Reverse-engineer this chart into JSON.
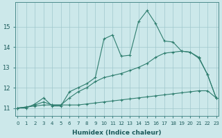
{
  "xlabel": "Humidex (Indice chaleur)",
  "ylabel": "",
  "background_color": "#cce8ea",
  "grid_color": "#a0c8cc",
  "line_color": "#2e7d6e",
  "x_ticks": [
    0,
    1,
    2,
    3,
    4,
    5,
    6,
    7,
    8,
    9,
    10,
    11,
    12,
    13,
    14,
    15,
    16,
    17,
    18,
    19,
    20,
    21,
    22,
    23
  ],
  "y_ticks": [
    11,
    12,
    13,
    14,
    15
  ],
  "xlim": [
    -0.3,
    23.3
  ],
  "ylim": [
    10.6,
    16.2
  ],
  "series1_y": [
    11.0,
    11.0,
    11.2,
    11.5,
    11.1,
    11.1,
    11.8,
    12.0,
    12.2,
    12.5,
    14.4,
    14.6,
    13.55,
    13.6,
    15.25,
    15.8,
    15.15,
    14.3,
    14.25,
    13.8,
    13.75,
    13.45,
    12.65,
    11.5
  ],
  "series2_y": [
    11.0,
    11.05,
    11.1,
    11.15,
    11.15,
    11.15,
    11.15,
    11.15,
    11.2,
    11.25,
    11.3,
    11.35,
    11.4,
    11.45,
    11.5,
    11.55,
    11.6,
    11.65,
    11.7,
    11.75,
    11.8,
    11.85,
    11.85,
    11.5
  ],
  "series3_y": [
    11.0,
    11.05,
    11.15,
    11.3,
    11.15,
    11.15,
    11.5,
    11.8,
    12.0,
    12.3,
    12.5,
    12.6,
    12.7,
    12.85,
    13.0,
    13.2,
    13.5,
    13.7,
    13.75,
    13.8,
    13.75,
    13.5,
    12.65,
    11.5
  ]
}
